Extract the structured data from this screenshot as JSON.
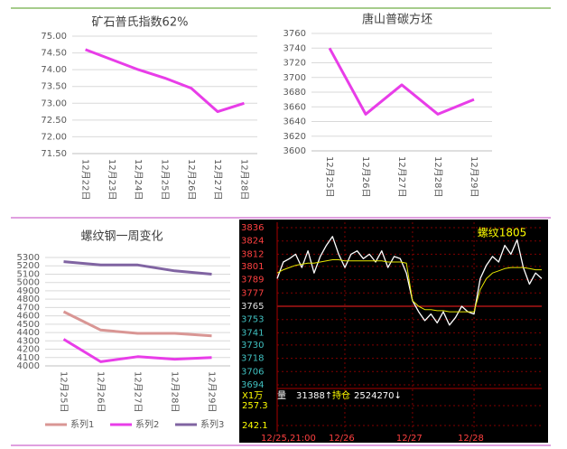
{
  "chart_data": [
    {
      "type": "line",
      "title": "矿石普氏指数62%",
      "categories": [
        "12月22日",
        "12月23日",
        "12月24日",
        "12月25日",
        "12月26日",
        "12月27日",
        "12月28日"
      ],
      "values": [
        74.6,
        74.3,
        74.0,
        73.75,
        73.45,
        72.75,
        73.0
      ],
      "color": "#e83de8",
      "ylim": [
        71.5,
        75
      ],
      "yticks": [
        {
          "value": 71.5,
          "label": "71.50"
        },
        {
          "value": 72,
          "label": "72.00"
        },
        {
          "value": 72.5,
          "label": "72.50"
        },
        {
          "value": 73,
          "label": "73.00"
        },
        {
          "value": 73.5,
          "label": "73.50"
        },
        {
          "value": 74,
          "label": "74.00"
        },
        {
          "value": 74.5,
          "label": "74.50"
        },
        {
          "value": 75,
          "label": "75.00"
        }
      ],
      "grid": true
    },
    {
      "type": "line",
      "title": "唐山普碳方坯",
      "categories": [
        "12月25日",
        "12月26日",
        "12月27日",
        "12月28日",
        "12月29日"
      ],
      "values": [
        3740,
        3650,
        3690,
        3650,
        3670
      ],
      "color": "#e83de8",
      "ylim": [
        3600,
        3760
      ],
      "yticks": [
        3600,
        3620,
        3640,
        3660,
        3680,
        3700,
        3720,
        3740,
        3760
      ],
      "grid": true
    },
    {
      "type": "line",
      "title": "螺纹钢一周变化",
      "categories": [
        "12月25日",
        "12月26日",
        "12月27日",
        "12月28日",
        "12月29日"
      ],
      "series": [
        {
          "name": "系列1",
          "color": "#d99694",
          "values": [
            4650,
            4430,
            4390,
            4390,
            4360
          ]
        },
        {
          "name": "系列2",
          "color": "#e83de8",
          "values": [
            4320,
            4050,
            4110,
            4080,
            4100
          ]
        },
        {
          "name": "系列3",
          "color": "#8064a2",
          "values": [
            5250,
            5210,
            5210,
            5140,
            5100
          ]
        }
      ],
      "ylim": [
        4000,
        5300
      ],
      "yticks": [
        4000,
        4100,
        4200,
        4300,
        4400,
        4500,
        4600,
        4700,
        4800,
        4900,
        5000,
        5100,
        5200,
        5300
      ],
      "grid": true,
      "legend": "bottom"
    },
    {
      "type": "intraday",
      "title": "螺纹1805",
      "categories": [
        "12/25,21:00",
        null,
        null,
        null,
        null,
        null,
        null,
        null,
        null,
        null,
        null,
        "12/26",
        null,
        null,
        null,
        null,
        null,
        null,
        null,
        null,
        null,
        null,
        "12/27",
        null,
        null,
        null,
        null,
        null,
        null,
        null,
        null,
        null,
        "12/28",
        null,
        null,
        null,
        null,
        null,
        null,
        null,
        null,
        null,
        null,
        null
      ],
      "series": [
        {
          "color": "#ffffff",
          "values": [
            3790,
            3805,
            3808,
            3812,
            3800,
            3815,
            3795,
            3810,
            3820,
            3828,
            3812,
            3800,
            3812,
            3815,
            3808,
            3812,
            3805,
            3815,
            3800,
            3810,
            3808,
            3795,
            3770,
            3760,
            3752,
            3758,
            3750,
            3760,
            3748,
            3755,
            3765,
            3760,
            3758,
            3790,
            3802,
            3810,
            3805,
            3820,
            3812,
            3825,
            3800,
            3785,
            3795,
            3790
          ]
        },
        {
          "color": "#e6e600",
          "values": [
            3795,
            3798,
            3800,
            3802,
            3803,
            3804,
            3804,
            3805,
            3806,
            3807,
            3807,
            3806,
            3806,
            3806,
            3806,
            3806,
            3806,
            3806,
            3805,
            3805,
            3805,
            3804,
            3770,
            3765,
            3762,
            3762,
            3761,
            3761,
            3760,
            3760,
            3760,
            3760,
            3760,
            3780,
            3790,
            3795,
            3797,
            3799,
            3800,
            3800,
            3800,
            3799,
            3798,
            3798
          ]
        }
      ],
      "ylim": [
        3694,
        3836
      ],
      "yticks": [
        3694,
        3706,
        3718,
        3730,
        3741,
        3753,
        3765,
        3777,
        3789,
        3801,
        3812,
        3824,
        3836
      ],
      "reference": 3765,
      "volume_texts": [
        "X1万",
        "量",
        "31388↑",
        "持仓",
        "2524270↓"
      ],
      "y2lim": [
        237.3,
        263.5
      ],
      "y2ticks": [
        257.3,
        242.1
      ],
      "grid": true
    }
  ]
}
